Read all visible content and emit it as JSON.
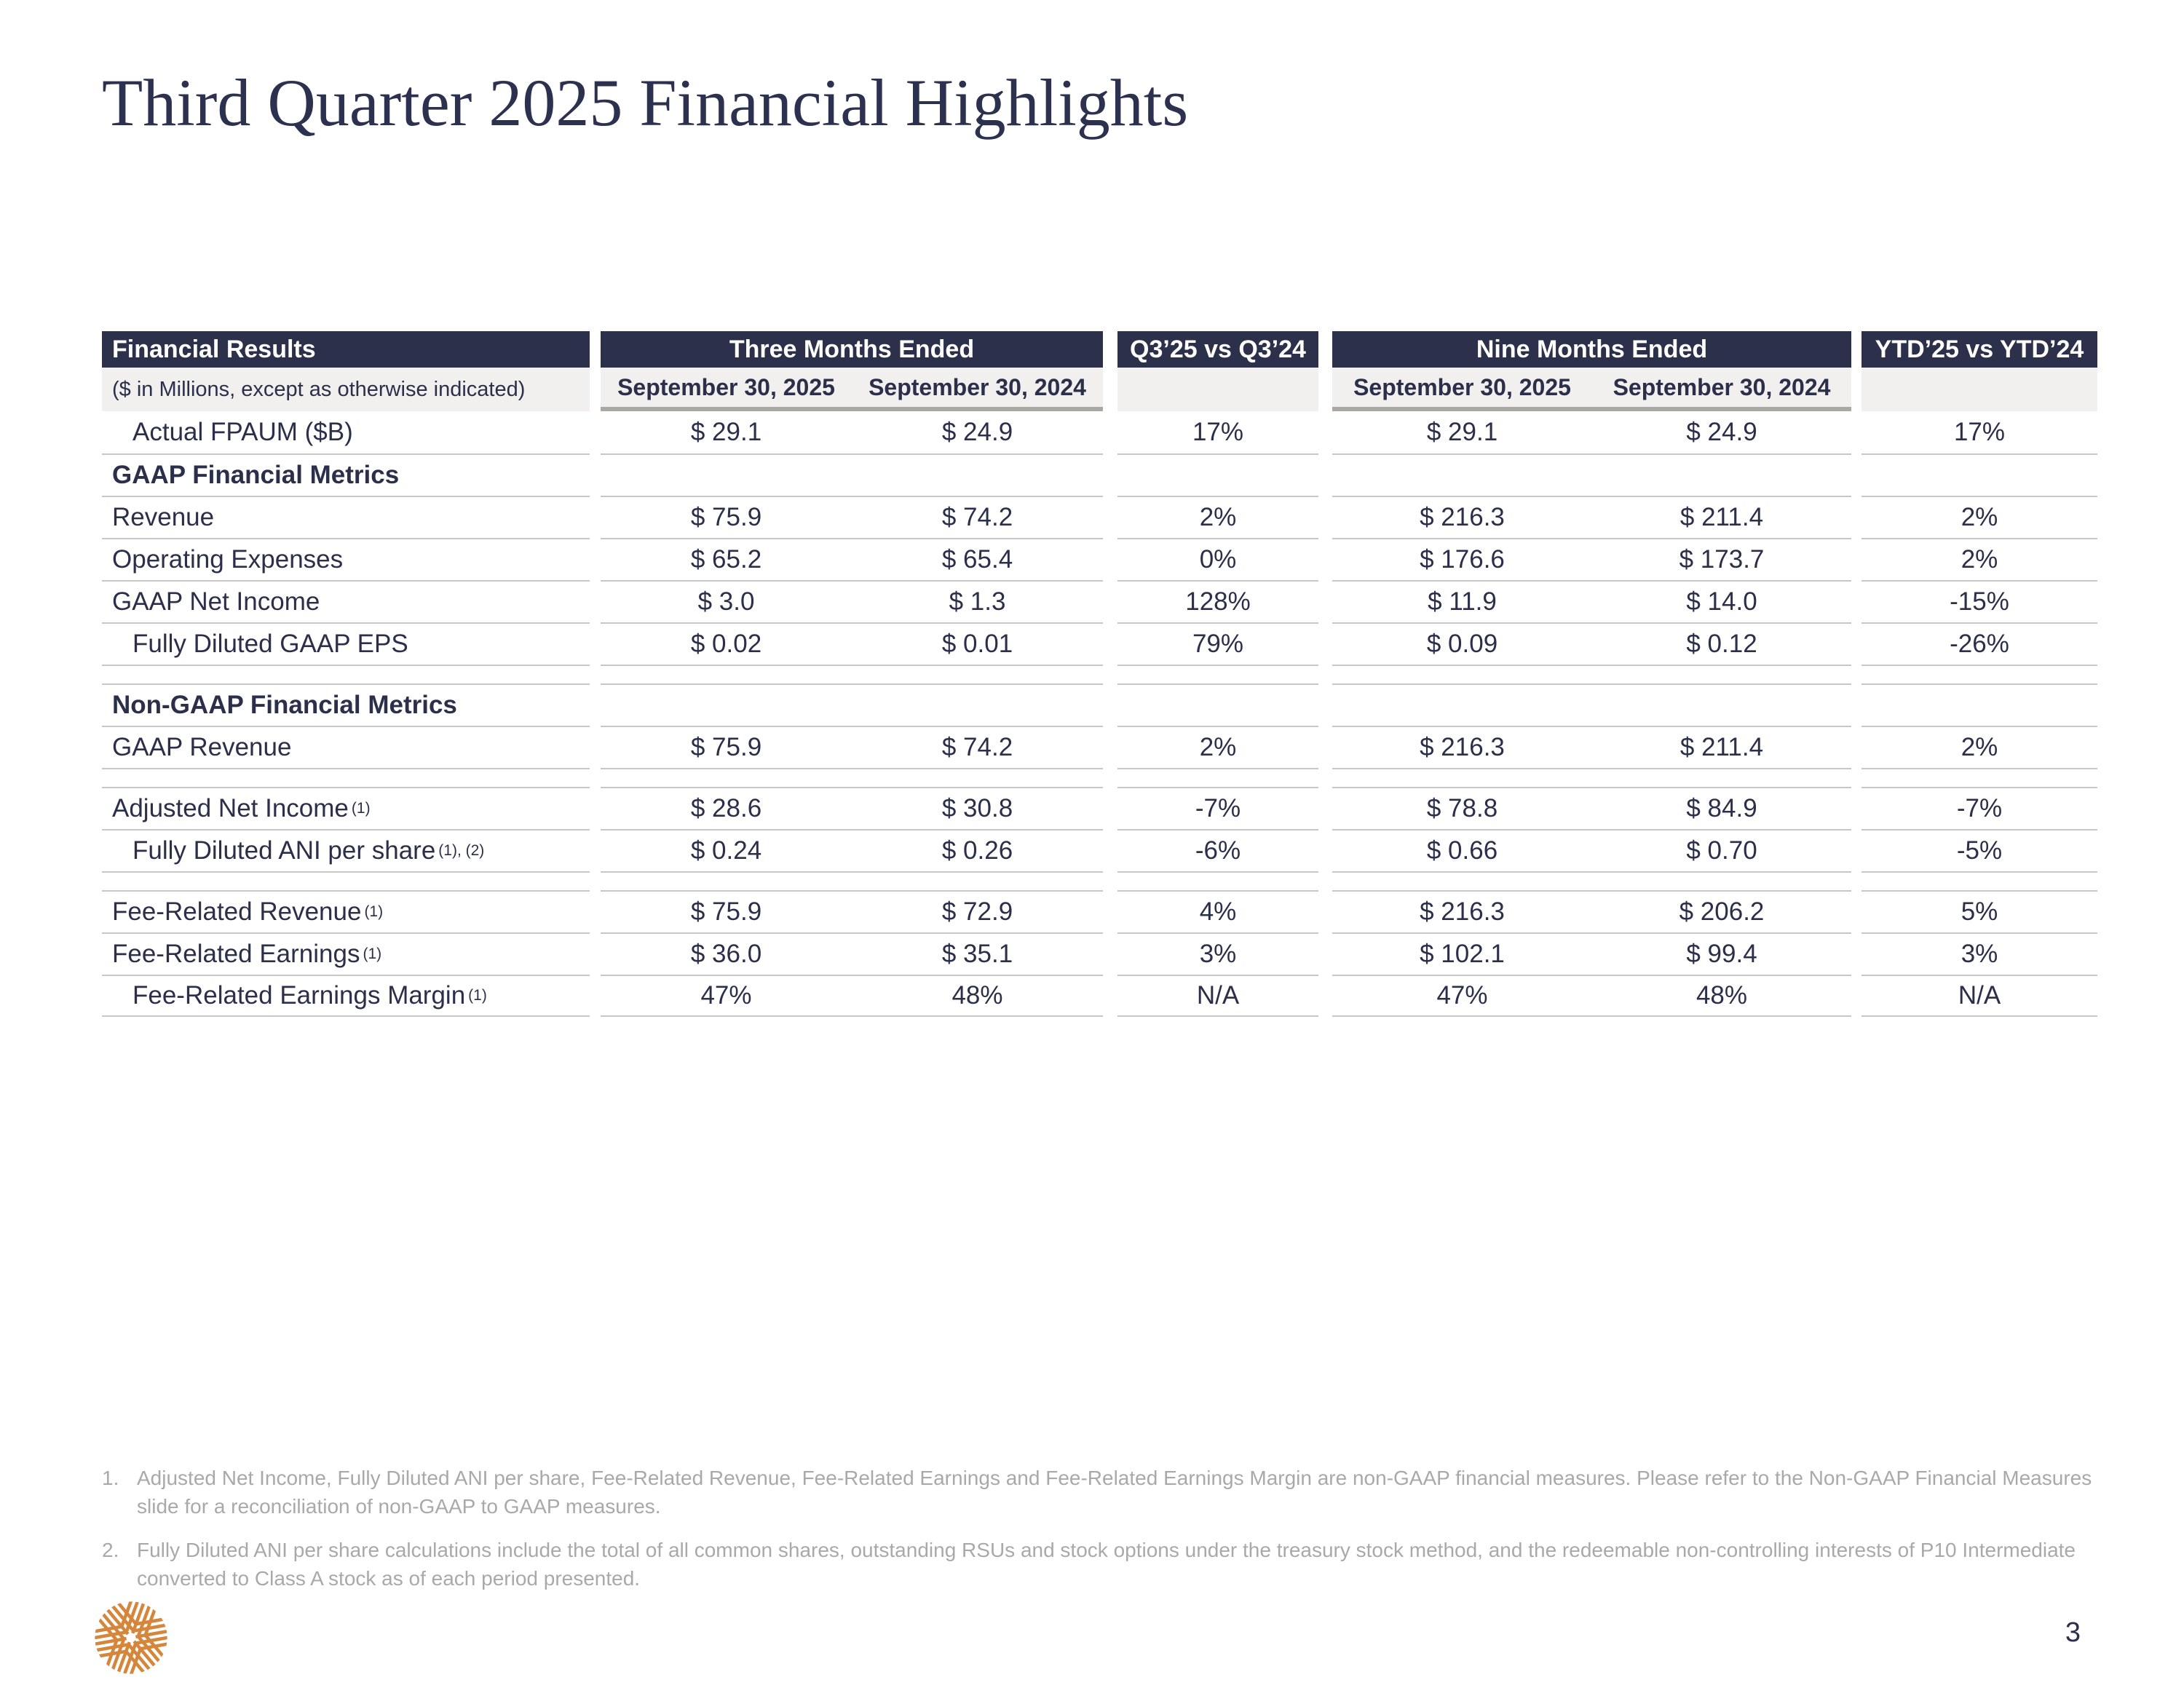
{
  "page": {
    "title": "Third Quarter 2025 Financial Highlights",
    "page_number": "3"
  },
  "colors": {
    "header_bg": "#2c304b",
    "text_navy": "#2b2f4a",
    "subheader_bg": "#f1f0ee",
    "row_separator": "#c8c7c5",
    "date_underline": "#aaa8a5",
    "footnote_gray": "#a9a9a9",
    "logo_orange": "#d5863b"
  },
  "logo_icon": "p10-starburst-logo",
  "table": {
    "header": {
      "col1": "Financial Results",
      "group1": "Three Months Ended",
      "vs1": "Q3’25 vs Q3’24",
      "group2": "Nine Months Ended",
      "vs2": "YTD’25 vs YTD’24"
    },
    "subheader": {
      "col1": "($ in Millions, except as otherwise indicated)",
      "g1a": "September 30, 2025",
      "g1b": "September 30, 2024",
      "g2a": "September 30, 2025",
      "g2b": "September 30, 2024"
    },
    "rows": [
      {
        "type": "data",
        "label": "Actual FPAUM ($B)",
        "sup": "",
        "indent": true,
        "values": [
          "$ 29.1",
          "$ 24.9",
          "17%",
          "$ 29.1",
          "$ 24.9",
          "17%"
        ]
      },
      {
        "type": "section",
        "label": "GAAP Financial Metrics",
        "sup": "",
        "indent": false,
        "values": [
          "",
          "",
          "",
          "",
          "",
          ""
        ]
      },
      {
        "type": "data",
        "label": "Revenue",
        "sup": "",
        "indent": false,
        "values": [
          "$ 75.9",
          "$ 74.2",
          "2%",
          "$ 216.3",
          "$ 211.4",
          "2%"
        ]
      },
      {
        "type": "data",
        "label": "Operating Expenses",
        "sup": "",
        "indent": false,
        "values": [
          "$ 65.2",
          "$ 65.4",
          "0%",
          "$ 176.6",
          "$ 173.7",
          "2%"
        ]
      },
      {
        "type": "data",
        "label": "GAAP Net Income",
        "sup": "",
        "indent": false,
        "values": [
          "$ 3.0",
          "$ 1.3",
          "128%",
          "$ 11.9",
          "$ 14.0",
          "-15%"
        ]
      },
      {
        "type": "data",
        "label": "Fully Diluted GAAP EPS",
        "sup": "",
        "indent": true,
        "values": [
          "$ 0.02",
          "$ 0.01",
          "79%",
          "$ 0.09",
          "$ 0.12",
          "-26%"
        ]
      },
      {
        "type": "spacer",
        "label": "",
        "sup": "",
        "indent": false,
        "values": [
          "",
          "",
          "",
          "",
          "",
          ""
        ]
      },
      {
        "type": "section",
        "label": "Non-GAAP Financial Metrics",
        "sup": "",
        "indent": false,
        "values": [
          "",
          "",
          "",
          "",
          "",
          ""
        ]
      },
      {
        "type": "data",
        "label": "GAAP Revenue",
        "sup": "",
        "indent": false,
        "values": [
          "$ 75.9",
          "$ 74.2",
          "2%",
          "$ 216.3",
          "$ 211.4",
          "2%"
        ]
      },
      {
        "type": "spacer",
        "label": "",
        "sup": "",
        "indent": false,
        "values": [
          "",
          "",
          "",
          "",
          "",
          ""
        ]
      },
      {
        "type": "data",
        "label": "Adjusted Net Income",
        "sup": "(1)",
        "indent": false,
        "values": [
          "$ 28.6",
          "$ 30.8",
          "-7%",
          "$ 78.8",
          "$ 84.9",
          "-7%"
        ]
      },
      {
        "type": "data",
        "label": "Fully Diluted ANI per share",
        "sup": "(1), (2)",
        "indent": true,
        "values": [
          "$ 0.24",
          "$ 0.26",
          "-6%",
          "$ 0.66",
          "$ 0.70",
          "-5%"
        ]
      },
      {
        "type": "spacer",
        "label": "",
        "sup": "",
        "indent": false,
        "values": [
          "",
          "",
          "",
          "",
          "",
          ""
        ]
      },
      {
        "type": "data",
        "label": "Fee-Related Revenue",
        "sup": "(1)",
        "indent": false,
        "values": [
          "$ 75.9",
          "$ 72.9",
          "4%",
          "$ 216.3",
          "$ 206.2",
          "5%"
        ]
      },
      {
        "type": "data",
        "label": "Fee-Related Earnings",
        "sup": "(1)",
        "indent": false,
        "values": [
          "$ 36.0",
          "$ 35.1",
          "3%",
          "$ 102.1",
          "$ 99.4",
          "3%"
        ]
      },
      {
        "type": "data",
        "label": "Fee-Related Earnings Margin",
        "sup": "(1)",
        "indent": true,
        "values": [
          "47%",
          "48%",
          "N/A",
          "47%",
          "48%",
          "N/A"
        ]
      }
    ]
  },
  "footnotes": [
    {
      "num": "1.",
      "text": "Adjusted Net Income, Fully Diluted ANI per share, Fee-Related Revenue, Fee-Related Earnings and Fee-Related Earnings Margin are non-GAAP financial measures. Please refer to the Non-GAAP Financial Measures slide for a reconciliation of non-GAAP to GAAP measures."
    },
    {
      "num": "2.",
      "text": "Fully Diluted ANI per share calculations include the total of all common shares, outstanding RSUs and stock options under the treasury stock method, and the redeemable non-controlling interests of P10 Intermediate converted to Class A stock as of each period presented."
    }
  ]
}
